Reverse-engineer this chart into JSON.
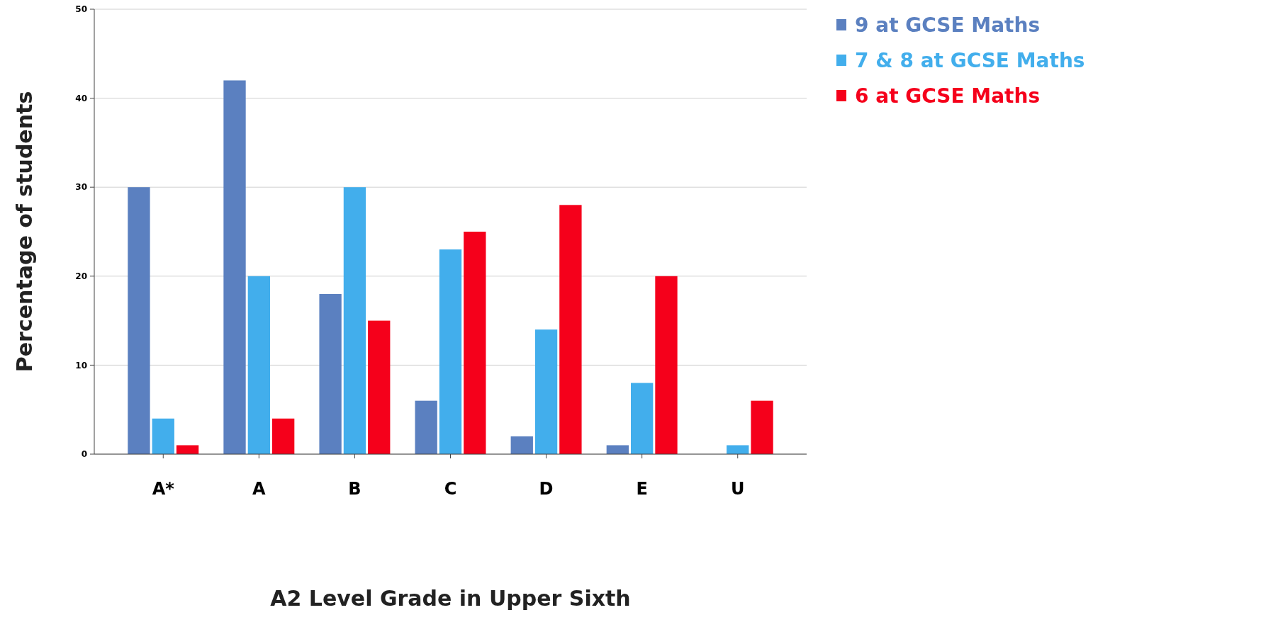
{
  "chart_data": {
    "type": "bar",
    "xlabel": "A2 Level Grade in Upper Sixth",
    "ylabel": "Percentage of students",
    "categories": [
      "A*",
      "A",
      "B",
      "C",
      "D",
      "E",
      "U"
    ],
    "series": [
      {
        "name": "9 at GCSE Maths",
        "color": "#5b80c0",
        "values": [
          30,
          42,
          18,
          6,
          2,
          1,
          null
        ]
      },
      {
        "name": "7 & 8 at GCSE Maths",
        "color": "#42aeec",
        "values": [
          4,
          20,
          30,
          23,
          14,
          8,
          1
        ]
      },
      {
        "name": "6 at GCSE Maths",
        "color": "#f5001b",
        "values": [
          1,
          4,
          15,
          25,
          28,
          20,
          6
        ]
      }
    ],
    "ylim": [
      0,
      50
    ],
    "yticks": [
      0,
      10,
      20,
      30,
      40,
      50
    ],
    "grid": "y",
    "legend": "top right"
  }
}
